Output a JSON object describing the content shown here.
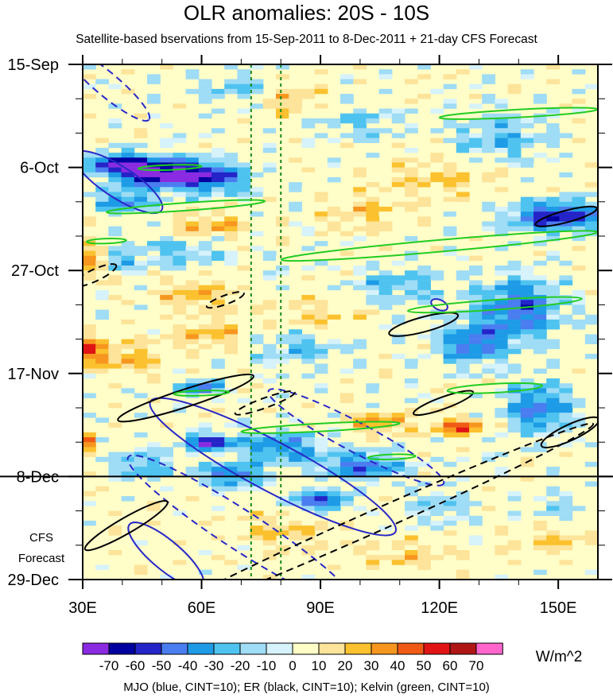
{
  "title": "OLR anomalies: 20S - 10S",
  "subtitle": "Satellite-based bservations from 15-Sep-2011 to 8-Dec-2011 + 21-day CFS Forecast",
  "footer": "MJO (blue, CINT=10); ER (black, CINT=10); Kelvin (green, CINT=10)",
  "forecast_label_line1": "CFS",
  "forecast_label_line2": "Forecast",
  "colorbar_unit": "W/m^2",
  "chart_data": {
    "type": "heatmap",
    "title": "OLR anomalies: 20S - 10S",
    "x_axis": {
      "range": [
        30,
        160
      ],
      "ticks": [
        30,
        60,
        90,
        120,
        150
      ],
      "tick_labels": [
        "30E",
        "60E",
        "90E",
        "120E",
        "150E"
      ]
    },
    "y_axis": {
      "range_days": [
        0,
        105
      ],
      "ticks_days": [
        0,
        21,
        42,
        63,
        84,
        105
      ],
      "tick_labels": [
        "15-Sep",
        "6-Oct",
        "27-Oct",
        "17-Nov",
        "8-Dec",
        "29-Dec"
      ]
    },
    "observation_end_day": 84,
    "reference_lines_lon": [
      72.5,
      80
    ],
    "colorbar": {
      "levels": [
        "-70",
        "-60",
        "-50",
        "-40",
        "-30",
        "-20",
        "-10",
        "0",
        "10",
        "20",
        "30",
        "40",
        "50",
        "60",
        "70"
      ],
      "colors": [
        "#8a2be2",
        "#0000a0",
        "#2424c8",
        "#4a7df0",
        "#1e9be6",
        "#4fc3f0",
        "#9fdcf5",
        "#d6f2fb",
        "#fffdc8",
        "#fde49a",
        "#fbc12e",
        "#f7961f",
        "#f05a14",
        "#e01414",
        "#b01616",
        "#ff66cc"
      ]
    },
    "contours": {
      "MJO": {
        "color": "#2828c8",
        "cint": 10
      },
      "ER": {
        "color": "#000000",
        "cint": 10
      },
      "Kelvin": {
        "color": "#22cc22",
        "cint": 10
      }
    }
  }
}
